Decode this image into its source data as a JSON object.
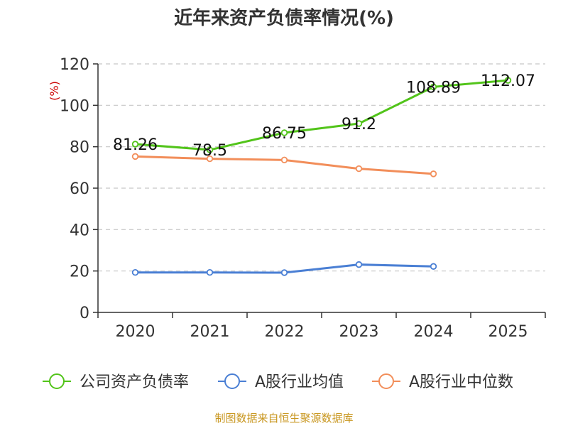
{
  "chart_data": {
    "type": "line",
    "title": "近年来资产负债率情况(%)",
    "ylabel": "(%)",
    "xlabel": "",
    "categories": [
      "2020",
      "2021",
      "2022",
      "2023",
      "2024",
      "2025"
    ],
    "ylim": [
      0,
      120
    ],
    "yticks": [
      0,
      20,
      40,
      60,
      80,
      100,
      120
    ],
    "grid": true,
    "legend_position": "bottom",
    "series": [
      {
        "name": "公司资产负债率",
        "color": "#52c41a",
        "values": [
          81.26,
          78.5,
          86.75,
          91.2,
          108.89,
          112.07
        ],
        "labels": [
          "81.26",
          "78.5",
          "86.75",
          "91.2",
          "108.89",
          "112.07"
        ]
      },
      {
        "name": "A股行业均值",
        "color": "#4a7fd4",
        "values": [
          19.3,
          19.3,
          19.2,
          23.1,
          22.2,
          null
        ]
      },
      {
        "name": "A股行业中位数",
        "color": "#f28e5a",
        "values": [
          75.3,
          74.2,
          73.6,
          69.4,
          66.9,
          null
        ]
      }
    ]
  },
  "source": "制图数据来自恒生聚源数据库"
}
